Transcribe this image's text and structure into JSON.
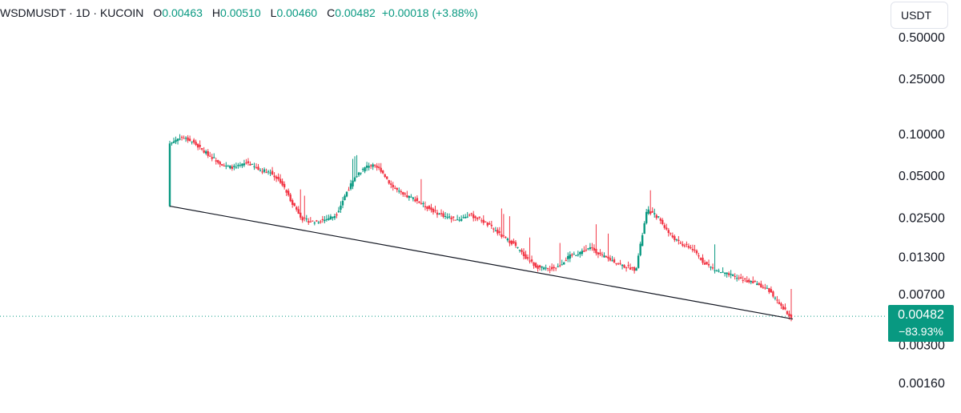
{
  "header": {
    "symbol": "WSDMUSDT · 1D · KUCOIN",
    "open_label": "O",
    "open": "0.00463",
    "high_label": "H",
    "high": "0.00510",
    "low_label": "L",
    "low": "0.00460",
    "close_label": "C",
    "close": "0.00482",
    "change": "+0.00018 (+3.88%)"
  },
  "currency_button": "USDT",
  "last_price": {
    "value": "0.00482",
    "change_pct": "−83.93%"
  },
  "colors": {
    "up": "#089981",
    "down": "#f23645",
    "trendline": "#131722",
    "price_line": "#089981"
  },
  "chart_data": {
    "type": "candlestick",
    "scale": "log",
    "currency": "USDT",
    "y_ticks": [
      "0.50000",
      "0.25000",
      "0.10000",
      "0.05000",
      "0.02500",
      "0.01300",
      "0.00700",
      "0.00300",
      "0.00160"
    ],
    "y_tick_values": [
      0.5,
      0.25,
      0.1,
      0.05,
      0.025,
      0.013,
      0.007,
      0.003,
      0.0016
    ],
    "last_close": 0.00482,
    "trendline": {
      "from": 0.03,
      "to": 0.0046
    },
    "series_close": [
      0.085,
      0.095,
      0.088,
      0.075,
      0.066,
      0.058,
      0.057,
      0.062,
      0.055,
      0.053,
      0.045,
      0.032,
      0.024,
      0.023,
      0.024,
      0.026,
      0.039,
      0.052,
      0.06,
      0.055,
      0.042,
      0.036,
      0.034,
      0.03,
      0.027,
      0.025,
      0.024,
      0.026,
      0.024,
      0.021,
      0.018,
      0.016,
      0.013,
      0.011,
      0.0105,
      0.011,
      0.013,
      0.014,
      0.015,
      0.013,
      0.012,
      0.011,
      0.0105,
      0.028,
      0.025,
      0.019,
      0.016,
      0.015,
      0.012,
      0.0105,
      0.0098,
      0.0092,
      0.0087,
      0.0082,
      0.0074,
      0.0057,
      0.0048
    ],
    "notes": "Approximate daily closes read from the log price axis, oldest to newest"
  }
}
